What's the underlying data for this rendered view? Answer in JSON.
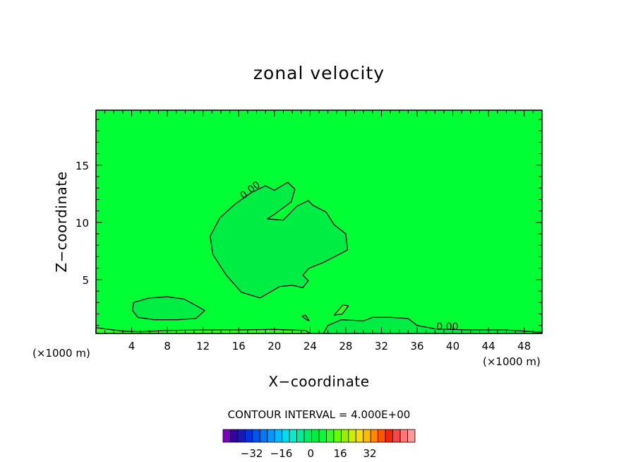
{
  "chart_data": {
    "type": "contour",
    "title": "zonal velocity",
    "xlabel": "X−coordinate",
    "ylabel": "Z−coordinate",
    "x_unit_left": "(×1000 m)",
    "x_unit_right": "(×1000 m)",
    "xlim": [
      0,
      50
    ],
    "ylim": [
      0.3,
      19.8
    ],
    "x_ticks": [
      4,
      8,
      12,
      16,
      20,
      24,
      28,
      32,
      36,
      40,
      44,
      48
    ],
    "x_tick_labels": [
      "4",
      "8",
      "12",
      "16",
      "20",
      "24",
      "28",
      "32",
      "36",
      "40",
      "44",
      "48"
    ],
    "y_ticks": [
      5,
      10,
      15
    ],
    "y_tick_labels": [
      "5",
      "10",
      "15"
    ],
    "background_color": "#00ff33",
    "contour_interval_text": "CONTOUR INTERVAL = 4.000E+00",
    "contour_interval": 4.0,
    "contour_labels": [
      {
        "text": "0.00",
        "x": 17.5,
        "z": 12.6
      },
      {
        "text": "0.00",
        "x": 39.4,
        "z": 0.6
      }
    ],
    "regions": [
      {
        "name": "upper-positive-lobe",
        "color": "#00ee44",
        "points": [
          [
            20.0,
            12.8
          ],
          [
            21.5,
            13.5
          ],
          [
            22.3,
            12.9
          ],
          [
            21.9,
            11.8
          ],
          [
            20.0,
            10.7
          ],
          [
            19.2,
            10.3
          ],
          [
            21.0,
            10.2
          ],
          [
            22.5,
            11.4
          ],
          [
            23.8,
            11.9
          ],
          [
            24.3,
            11.5
          ],
          [
            25.8,
            10.9
          ],
          [
            26.7,
            9.8
          ],
          [
            28.0,
            9.0
          ],
          [
            28.2,
            7.6
          ],
          [
            27.5,
            7.3
          ],
          [
            25.5,
            6.5
          ],
          [
            23.9,
            6.0
          ],
          [
            23.2,
            5.4
          ],
          [
            23.8,
            4.9
          ],
          [
            23.2,
            4.3
          ],
          [
            22.0,
            4.5
          ],
          [
            20.6,
            4.4
          ],
          [
            19.5,
            3.9
          ],
          [
            18.4,
            3.4
          ],
          [
            16.3,
            3.9
          ],
          [
            14.6,
            5.4
          ],
          [
            13.1,
            7.2
          ],
          [
            12.8,
            8.8
          ],
          [
            13.9,
            10.4
          ],
          [
            15.6,
            11.6
          ],
          [
            17.4,
            12.6
          ],
          [
            19.0,
            13.2
          ]
        ]
      },
      {
        "name": "lower-left-lobe",
        "color": "#00ee44",
        "points": [
          [
            4.2,
            3.0
          ],
          [
            6.0,
            3.4
          ],
          [
            8.0,
            3.5
          ],
          [
            9.9,
            3.3
          ],
          [
            11.3,
            2.7
          ],
          [
            12.2,
            2.3
          ],
          [
            11.2,
            1.6
          ],
          [
            9.2,
            1.5
          ],
          [
            6.5,
            1.5
          ],
          [
            4.7,
            1.7
          ],
          [
            4.1,
            2.3
          ]
        ]
      },
      {
        "name": "surface-layer-left",
        "color": "#33ff22",
        "points": [
          [
            0.0,
            0.8
          ],
          [
            1.0,
            0.7
          ],
          [
            3.0,
            0.5
          ],
          [
            5.0,
            0.45
          ],
          [
            8.0,
            0.55
          ],
          [
            12.0,
            0.6
          ],
          [
            16.0,
            0.6
          ],
          [
            20.0,
            0.65
          ],
          [
            23.5,
            0.55
          ],
          [
            24.0,
            0.3
          ],
          [
            0.0,
            0.3
          ]
        ]
      },
      {
        "name": "surface-layer-right",
        "color": "#00ee44",
        "points": [
          [
            25.5,
            0.3
          ],
          [
            26.0,
            1.0
          ],
          [
            27.5,
            1.5
          ],
          [
            30.0,
            1.4
          ],
          [
            31.0,
            1.7
          ],
          [
            33.0,
            1.7
          ],
          [
            35.0,
            1.6
          ],
          [
            36.0,
            1.0
          ],
          [
            38.0,
            0.7
          ],
          [
            42.0,
            0.6
          ],
          [
            46.0,
            0.6
          ],
          [
            50.0,
            0.4
          ],
          [
            50.0,
            0.3
          ]
        ]
      },
      {
        "name": "small-cell-a",
        "color": "#00ee44",
        "points": [
          [
            23.1,
            1.8
          ],
          [
            23.6,
            1.5
          ],
          [
            23.9,
            1.4
          ],
          [
            23.5,
            1.9
          ]
        ]
      },
      {
        "name": "small-cell-b",
        "color": "#33ff22",
        "points": [
          [
            26.7,
            1.9
          ],
          [
            27.7,
            2.8
          ],
          [
            28.3,
            2.7
          ],
          [
            27.6,
            2.0
          ]
        ]
      }
    ],
    "colorbar": {
      "colors": [
        "#8000c0",
        "#3300aa",
        "#1a1ab3",
        "#0033dd",
        "#0055ee",
        "#0077ff",
        "#0099ff",
        "#00bbff",
        "#00ddee",
        "#00eecc",
        "#00ee99",
        "#00ee66",
        "#00ee44",
        "#00ff33",
        "#33ff22",
        "#66ff00",
        "#99ee00",
        "#ccee00",
        "#ffdd00",
        "#ffbb00",
        "#ff8800",
        "#ff5500",
        "#ff2200",
        "#ff4444",
        "#ff7777",
        "#ff9999"
      ],
      "tick_labels": [
        "−32",
        "−16",
        "0",
        "16",
        "32"
      ]
    }
  }
}
